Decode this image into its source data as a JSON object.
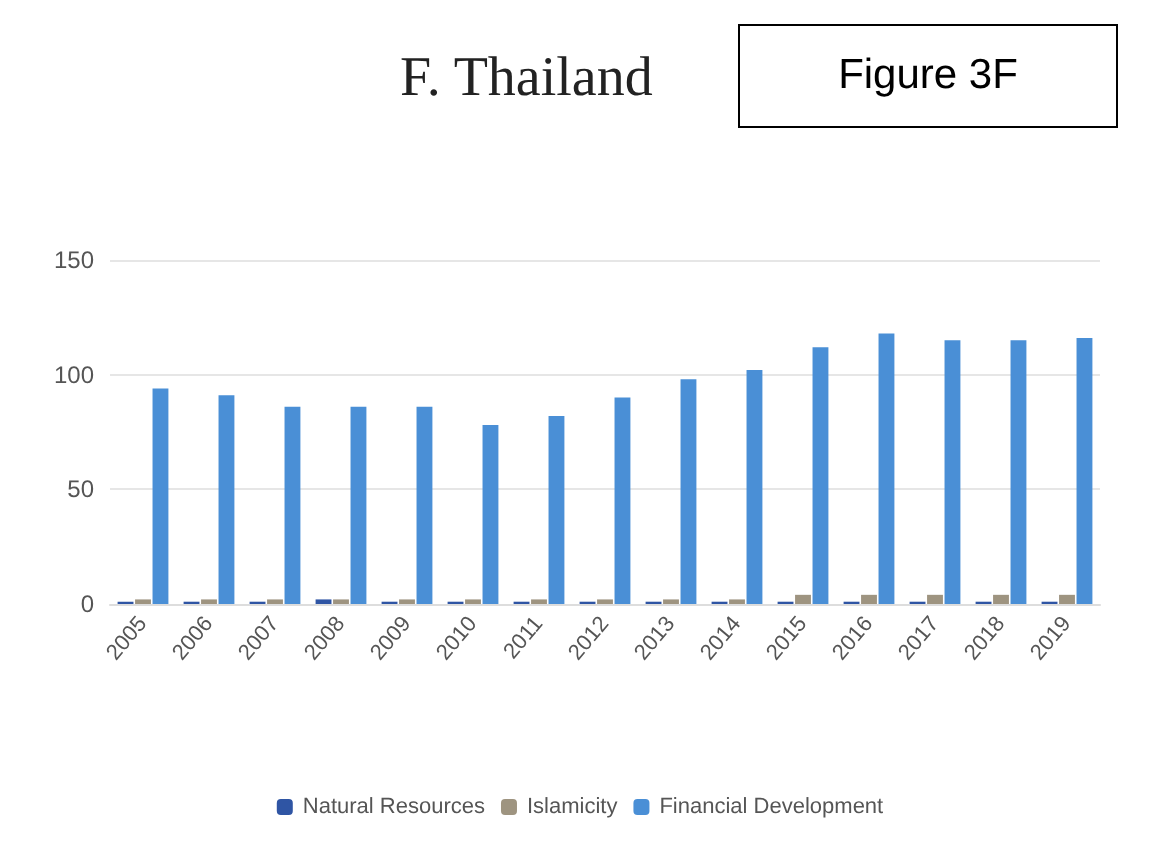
{
  "chart_data": {
    "type": "bar",
    "title": "F. Thailand",
    "annotations": [
      "Figure 3F"
    ],
    "categories": [
      "2005",
      "2006",
      "2007",
      "2008",
      "2009",
      "2010",
      "2011",
      "2012",
      "2013",
      "2014",
      "2015",
      "2016",
      "2017",
      "2018",
      "2019"
    ],
    "series": [
      {
        "name": "Natural Resources",
        "color": "#2f55a4",
        "values": [
          1,
          1,
          1,
          2,
          1,
          1,
          1,
          1,
          1,
          1,
          1,
          1,
          1,
          1,
          1
        ]
      },
      {
        "name": "Islamicity",
        "color": "#9e9480",
        "values": [
          2,
          2,
          2,
          2,
          2,
          2,
          2,
          2,
          2,
          2,
          4,
          4,
          4,
          4,
          4
        ]
      },
      {
        "name": "Financial Development",
        "color": "#4a8fd6",
        "values": [
          94,
          91,
          86,
          86,
          86,
          78,
          82,
          90,
          98,
          102,
          112,
          118,
          115,
          115,
          116
        ]
      }
    ],
    "ylim": [
      0,
      150
    ],
    "yticks": [
      0,
      50,
      100,
      150
    ],
    "grid": "y",
    "legend": "bottom"
  }
}
